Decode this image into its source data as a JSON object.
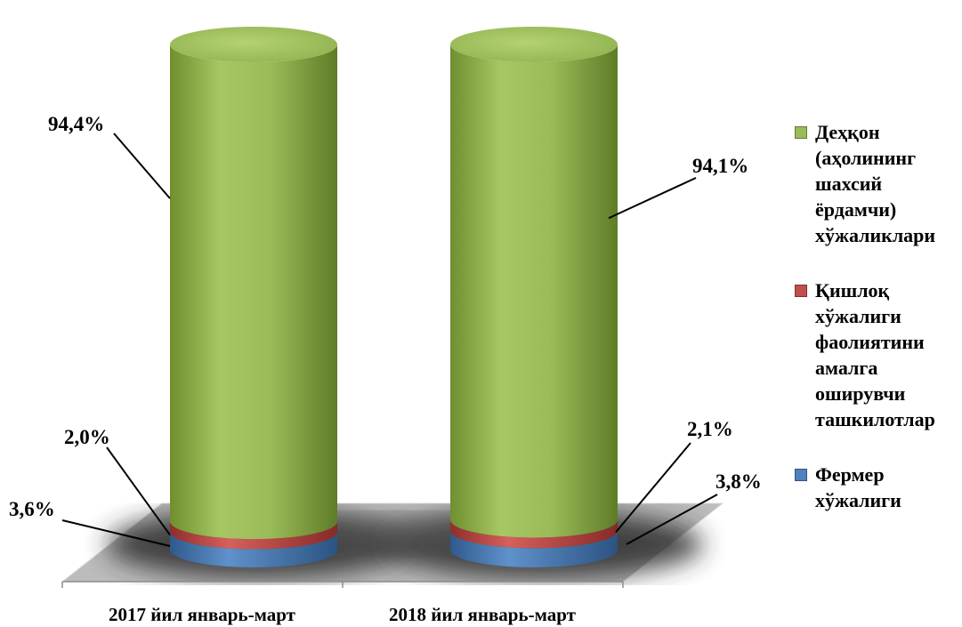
{
  "chart_data": {
    "type": "bar",
    "stacked": true,
    "style": "3d-cylinder",
    "categories": [
      "2017 йил январь-март",
      "2018 йил январь-март"
    ],
    "series": [
      {
        "name": "Фермер хўжалиги",
        "values": [
          3.6,
          3.8
        ],
        "labels": [
          "3,6%",
          "3,8%"
        ],
        "color": "#4f81bd"
      },
      {
        "name": "Қишлоқ хўжалиги фаолиятини амалга оширувчи ташкилотлар",
        "values": [
          2.0,
          2.1
        ],
        "labels": [
          "2,0%",
          "2,1%"
        ],
        "color": "#c0504d"
      },
      {
        "name": "Деҳқон (аҳолининг шахсий ёрдамчи) хўжаликлари",
        "values": [
          94.4,
          94.1
        ],
        "labels": [
          "94,4%",
          "94,1%"
        ],
        "color": "#9bbb59"
      }
    ],
    "ylim": [
      0,
      100
    ],
    "legend_position": "right",
    "grid": false
  },
  "legend": {
    "items": [
      {
        "label": "Деҳқон (аҳолининг шахсий ёрдамчи) хўжаликлари",
        "color": "#9bbb59"
      },
      {
        "label": "Қишлоқ хўжалиги фаолиятини амалга оширувчи ташкилотлар",
        "color": "#c0504d"
      },
      {
        "label": "Фермер хўжалиги",
        "color": "#4f81bd"
      }
    ]
  }
}
